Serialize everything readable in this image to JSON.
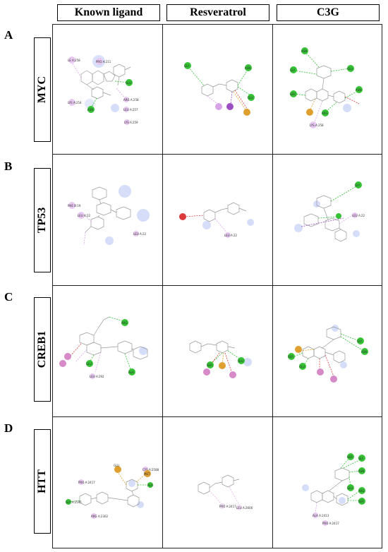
{
  "columns": [
    "Known ligand",
    "Resveratrol",
    "C3G"
  ],
  "rows": [
    {
      "letter": "A",
      "gene": "MYC"
    },
    {
      "letter": "B",
      "gene": "TP53"
    },
    {
      "letter": "C",
      "gene": "CREB1"
    },
    {
      "letter": "D",
      "gene": "HTT"
    }
  ],
  "colors": {
    "hbond": "#35c235",
    "pi_alkyl": "#d9a3e8",
    "pi_sigma": "#9b4fc2",
    "pi_cation": "#e0a030",
    "vdw_blue": "#b9c6f5",
    "unfavorable": "#d93a3a",
    "halogen": "#e08ad0"
  }
}
